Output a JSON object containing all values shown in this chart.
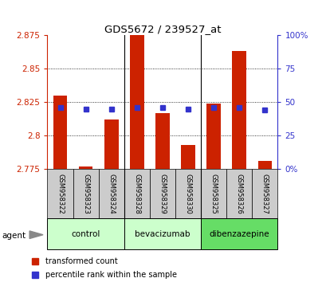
{
  "title": "GDS5672 / 239527_at",
  "samples": [
    "GSM958322",
    "GSM958323",
    "GSM958324",
    "GSM958328",
    "GSM958329",
    "GSM958330",
    "GSM958325",
    "GSM958326",
    "GSM958327"
  ],
  "red_values": [
    2.83,
    2.777,
    2.812,
    2.876,
    2.817,
    2.793,
    2.824,
    2.863,
    2.781
  ],
  "blue_values": [
    46,
    45,
    45,
    46,
    46,
    45,
    46,
    46,
    44
  ],
  "y_min": 2.775,
  "y_max": 2.875,
  "y_ticks": [
    2.775,
    2.8,
    2.825,
    2.85,
    2.875
  ],
  "y2_ticks": [
    0,
    25,
    50,
    75,
    100
  ],
  "bar_color": "#cc2200",
  "blue_color": "#3333cc",
  "bar_width": 0.55,
  "left_axis_color": "#cc2200",
  "right_axis_color": "#3333cc",
  "agent_label": "agent",
  "legend_red": "transformed count",
  "legend_blue": "percentile rank within the sample",
  "tick_bg": "#cccccc",
  "group_colors": [
    "#ccffcc",
    "#ccffcc",
    "#66dd66"
  ],
  "group_labels": [
    "control",
    "bevacizumab",
    "dibenzazepine"
  ],
  "group_ranges": [
    [
      -0.5,
      2.5
    ],
    [
      2.5,
      5.5
    ],
    [
      5.5,
      8.5
    ]
  ]
}
